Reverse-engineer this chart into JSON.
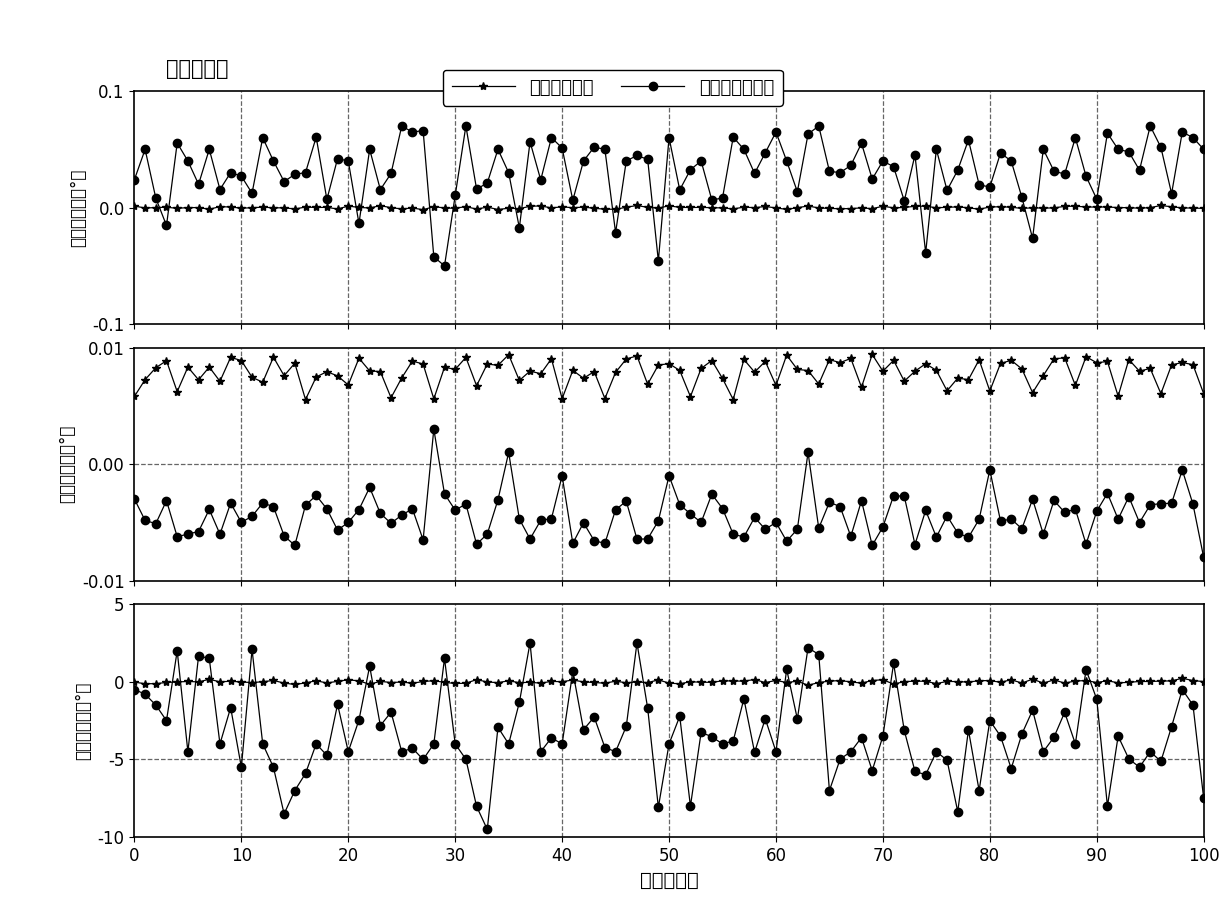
{
  "title": "姿态角误差",
  "legend_label1": "抗野值粗对准",
  "legend_label2": "原最优化粗对准",
  "xlabel": "粗对准次序",
  "ylabel1": "纵摇角误差（°）",
  "ylabel2": "横摇角误差（°）",
  "ylabel3": "航向误差角（°）",
  "xlim": [
    0,
    100
  ],
  "ylim1": [
    -0.1,
    0.1
  ],
  "ylim2": [
    -0.01,
    0.01
  ],
  "ylim3": [
    -10,
    5
  ],
  "yticks1": [
    -0.1,
    0,
    0.1
  ],
  "yticks2": [
    -0.01,
    0,
    0.01
  ],
  "yticks3": [
    -10,
    -5,
    0,
    5
  ],
  "xticks": [
    0,
    10,
    20,
    30,
    40,
    50,
    60,
    70,
    80,
    90,
    100
  ],
  "vlines": [
    10,
    20,
    30,
    40,
    50,
    60,
    70,
    80,
    90
  ],
  "hline2": 0,
  "hline3": -5,
  "background_color": "#ffffff",
  "line_color": "#000000",
  "dashed_color": "#666666",
  "figsize": [
    12.22,
    9.1
  ],
  "dpi": 100,
  "title_fontsize": 15,
  "legend_fontsize": 13,
  "label_fontsize": 12,
  "tick_fontsize": 12,
  "xlabel_fontsize": 14
}
